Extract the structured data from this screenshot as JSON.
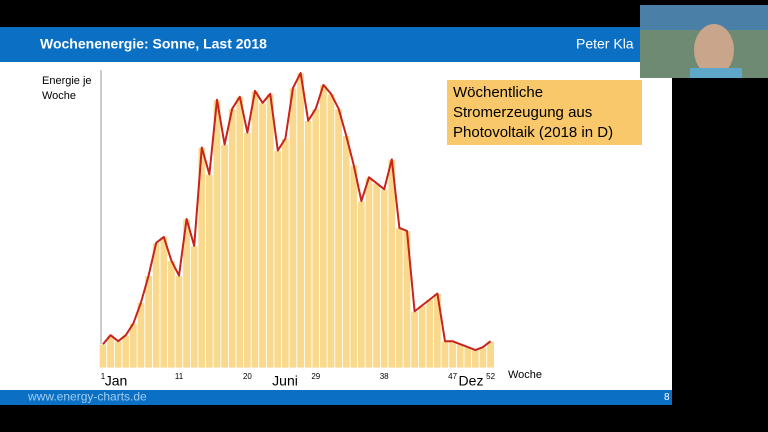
{
  "slide": {
    "title": "Wochenenergie: Sonne, Last 2018",
    "author": "Peter Kla",
    "footer": "www.energy-charts.de",
    "page": "8"
  },
  "chart_data": {
    "type": "bar",
    "y_label": "Energie je Woche",
    "x_label": "Woche",
    "month_labels": [
      "Jan",
      "Juni",
      "Dez"
    ],
    "annotation": [
      "Wöchentliche",
      "Stromerzeugung aus",
      "Photovoltaik (2018 in D)"
    ],
    "categories": [
      "1",
      null,
      null,
      null,
      null,
      null,
      null,
      null,
      null,
      null,
      "11",
      null,
      null,
      null,
      null,
      null,
      null,
      null,
      null,
      "20",
      null,
      null,
      null,
      null,
      null,
      null,
      null,
      null,
      "29",
      null,
      null,
      null,
      null,
      null,
      null,
      null,
      null,
      "38",
      null,
      null,
      null,
      null,
      null,
      null,
      null,
      null,
      "47",
      null,
      null,
      null,
      null,
      "52"
    ],
    "values": [
      8,
      11,
      9,
      11,
      15,
      22,
      31,
      42,
      44,
      36,
      31,
      50,
      41,
      74,
      65,
      90,
      75,
      87,
      91,
      79,
      93,
      89,
      92,
      73,
      77,
      94,
      99,
      83,
      87,
      95,
      92,
      87,
      78,
      68,
      56,
      64,
      62,
      60,
      70,
      47,
      46,
      19,
      21,
      23,
      25,
      9,
      9,
      8,
      7,
      6,
      7,
      9
    ],
    "color": "#f8d98e",
    "line_color": "#c8231c",
    "ylim": [
      0,
      100
    ]
  }
}
